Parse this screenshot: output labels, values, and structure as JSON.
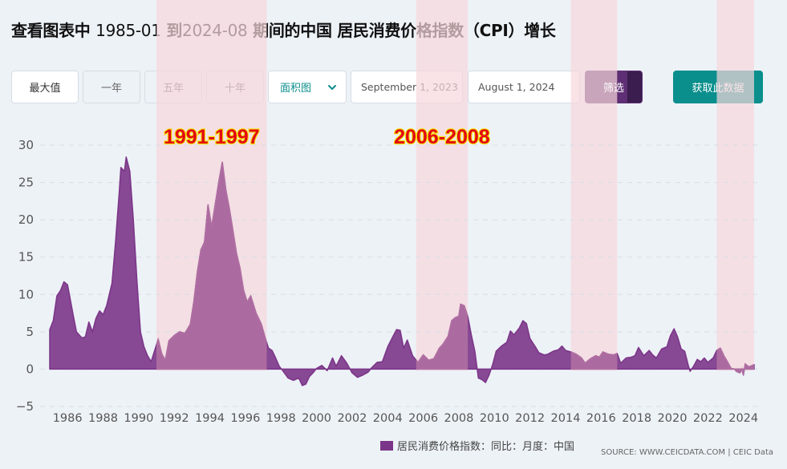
{
  "title": {
    "prefix": "查看图表中",
    "start": "1985-01",
    "to": "到",
    "end": "2024-08",
    "suffix": "期间的中国 居民消费价格指数（CPI）增长"
  },
  "toolbar": {
    "max_label": "最大值",
    "one_year_label": "一年",
    "five_year_label": "五年",
    "ten_year_label": "十年",
    "chart_type_value": "面积图",
    "start_date_value": "September 1, 2023",
    "end_date_value": "August 1, 2024",
    "filter_label": "筛选",
    "download_label": "获取此数据"
  },
  "colors": {
    "series": "#7b3588",
    "series_highlight": "#b06fa2",
    "band": "#f6d7dc",
    "accent": "#0a8f8c",
    "annotation_text": "#e30613",
    "annotation_outline": "#f4e200"
  },
  "legend_label": "居民消费价格指数：同比：月度：中国",
  "source": "SOURCE: WWW.CEICDATA.COM | CEIC Data",
  "chart_data": {
    "type": "area",
    "x_unit": "year (decimal)",
    "xlim": [
      1985.0,
      2024.6
    ],
    "ylim": [
      -5,
      30
    ],
    "yticks": [
      "−5",
      "0",
      "5",
      "10",
      "15",
      "20",
      "25",
      "30"
    ],
    "xticks": [
      "1986",
      "1988",
      "1990",
      "1992",
      "1994",
      "1996",
      "1998",
      "2000",
      "2002",
      "2004",
      "2006",
      "2008",
      "2010",
      "2012",
      "2014",
      "2016",
      "2018",
      "2020",
      "2022",
      "2024"
    ],
    "grid": true,
    "legend_position": "bottom",
    "highlight_periods": [
      {
        "label": "1991-1997",
        "from": 1991.0,
        "to": 1997.2
      },
      {
        "label": "2006-2008",
        "from": 2005.6,
        "to": 2008.5
      },
      {
        "label": "",
        "from": 2014.3,
        "to": 2016.9
      },
      {
        "label": "",
        "from": 2022.5,
        "to": 2024.6
      }
    ],
    "series": [
      {
        "name": "居民消费价格指数：同比：月度：中国",
        "points": [
          [
            1985.0,
            5.3
          ],
          [
            1985.2,
            6.5
          ],
          [
            1985.4,
            9.8
          ],
          [
            1985.6,
            10.5
          ],
          [
            1985.8,
            11.7
          ],
          [
            1986.0,
            11.3
          ],
          [
            1986.3,
            7.5
          ],
          [
            1986.5,
            5.0
          ],
          [
            1986.8,
            4.2
          ],
          [
            1987.0,
            4.3
          ],
          [
            1987.2,
            6.3
          ],
          [
            1987.4,
            5.0
          ],
          [
            1987.6,
            6.8
          ],
          [
            1987.8,
            7.8
          ],
          [
            1988.0,
            7.3
          ],
          [
            1988.2,
            8.5
          ],
          [
            1988.5,
            11.5
          ],
          [
            1988.7,
            17.0
          ],
          [
            1988.9,
            23.5
          ],
          [
            1989.0,
            27.0
          ],
          [
            1989.2,
            26.5
          ],
          [
            1989.3,
            28.4
          ],
          [
            1989.5,
            26.5
          ],
          [
            1989.7,
            20.0
          ],
          [
            1989.9,
            12.0
          ],
          [
            1990.1,
            5.0
          ],
          [
            1990.3,
            3.0
          ],
          [
            1990.5,
            1.8
          ],
          [
            1990.7,
            1.0
          ],
          [
            1990.9,
            2.5
          ],
          [
            1991.1,
            4.0
          ],
          [
            1991.3,
            2.0
          ],
          [
            1991.5,
            1.2
          ],
          [
            1991.7,
            3.8
          ],
          [
            1992.0,
            4.5
          ],
          [
            1992.3,
            5.0
          ],
          [
            1992.6,
            4.8
          ],
          [
            1992.9,
            6.0
          ],
          [
            1993.1,
            9.0
          ],
          [
            1993.3,
            13.0
          ],
          [
            1993.5,
            16.0
          ],
          [
            1993.7,
            17.0
          ],
          [
            1993.9,
            22.0
          ],
          [
            1994.1,
            19.0
          ],
          [
            1994.3,
            22.0
          ],
          [
            1994.5,
            25.0
          ],
          [
            1994.7,
            27.7
          ],
          [
            1994.9,
            24.0
          ],
          [
            1995.1,
            21.5
          ],
          [
            1995.3,
            18.5
          ],
          [
            1995.5,
            15.5
          ],
          [
            1995.7,
            13.5
          ],
          [
            1995.9,
            10.5
          ],
          [
            1996.1,
            9.0
          ],
          [
            1996.3,
            9.8
          ],
          [
            1996.6,
            7.5
          ],
          [
            1996.9,
            6.0
          ],
          [
            1997.1,
            4.3
          ],
          [
            1997.3,
            2.8
          ],
          [
            1997.5,
            2.5
          ],
          [
            1997.7,
            1.5
          ],
          [
            1997.9,
            0.4
          ],
          [
            1998.1,
            -0.2
          ],
          [
            1998.4,
            -1.2
          ],
          [
            1998.7,
            -1.5
          ],
          [
            1999.0,
            -1.2
          ],
          [
            1999.2,
            -2.2
          ],
          [
            1999.4,
            -2.0
          ],
          [
            1999.6,
            -1.0
          ],
          [
            1999.8,
            -0.5
          ],
          [
            2000.0,
            0.1
          ],
          [
            2000.3,
            0.5
          ],
          [
            2000.6,
            -0.2
          ],
          [
            2000.9,
            1.5
          ],
          [
            2001.1,
            0.4
          ],
          [
            2001.4,
            1.8
          ],
          [
            2001.7,
            0.8
          ],
          [
            2002.0,
            -0.5
          ],
          [
            2002.3,
            -1.1
          ],
          [
            2002.6,
            -0.8
          ],
          [
            2002.9,
            -0.4
          ],
          [
            2003.1,
            0.2
          ],
          [
            2003.4,
            0.9
          ],
          [
            2003.7,
            1.0
          ],
          [
            2004.0,
            3.0
          ],
          [
            2004.3,
            4.4
          ],
          [
            2004.5,
            5.3
          ],
          [
            2004.7,
            5.2
          ],
          [
            2004.9,
            2.8
          ],
          [
            2005.1,
            3.9
          ],
          [
            2005.4,
            1.8
          ],
          [
            2005.7,
            0.9
          ],
          [
            2006.0,
            1.9
          ],
          [
            2006.3,
            1.2
          ],
          [
            2006.6,
            1.4
          ],
          [
            2006.9,
            2.8
          ],
          [
            2007.1,
            3.3
          ],
          [
            2007.4,
            4.4
          ],
          [
            2007.6,
            6.5
          ],
          [
            2007.8,
            6.9
          ],
          [
            2008.0,
            7.1
          ],
          [
            2008.1,
            8.7
          ],
          [
            2008.3,
            8.5
          ],
          [
            2008.5,
            7.1
          ],
          [
            2008.7,
            4.6
          ],
          [
            2008.9,
            2.4
          ],
          [
            2009.1,
            -1.2
          ],
          [
            2009.3,
            -1.4
          ],
          [
            2009.5,
            -1.8
          ],
          [
            2009.7,
            -0.8
          ],
          [
            2009.9,
            0.6
          ],
          [
            2010.1,
            2.4
          ],
          [
            2010.4,
            3.1
          ],
          [
            2010.7,
            3.6
          ],
          [
            2010.9,
            5.1
          ],
          [
            2011.1,
            4.6
          ],
          [
            2011.4,
            5.5
          ],
          [
            2011.6,
            6.5
          ],
          [
            2011.8,
            6.1
          ],
          [
            2012.0,
            4.1
          ],
          [
            2012.3,
            3.0
          ],
          [
            2012.5,
            2.2
          ],
          [
            2012.8,
            1.9
          ],
          [
            2013.0,
            2.0
          ],
          [
            2013.3,
            2.4
          ],
          [
            2013.6,
            2.6
          ],
          [
            2013.8,
            3.1
          ],
          [
            2014.0,
            2.5
          ],
          [
            2014.3,
            2.3
          ],
          [
            2014.6,
            2.0
          ],
          [
            2014.9,
            1.5
          ],
          [
            2015.1,
            0.8
          ],
          [
            2015.4,
            1.4
          ],
          [
            2015.7,
            1.8
          ],
          [
            2015.9,
            1.6
          ],
          [
            2016.1,
            2.3
          ],
          [
            2016.4,
            2.0
          ],
          [
            2016.7,
            1.9
          ],
          [
            2016.9,
            2.1
          ],
          [
            2017.1,
            0.8
          ],
          [
            2017.4,
            1.5
          ],
          [
            2017.7,
            1.6
          ],
          [
            2017.9,
            1.8
          ],
          [
            2018.1,
            2.9
          ],
          [
            2018.4,
            1.8
          ],
          [
            2018.7,
            2.5
          ],
          [
            2018.9,
            1.9
          ],
          [
            2019.1,
            1.5
          ],
          [
            2019.4,
            2.7
          ],
          [
            2019.7,
            3.0
          ],
          [
            2019.8,
            3.8
          ],
          [
            2019.9,
            4.5
          ],
          [
            2020.1,
            5.4
          ],
          [
            2020.3,
            4.3
          ],
          [
            2020.5,
            2.7
          ],
          [
            2020.7,
            2.4
          ],
          [
            2020.9,
            0.5
          ],
          [
            2021.0,
            -0.3
          ],
          [
            2021.2,
            0.4
          ],
          [
            2021.4,
            1.3
          ],
          [
            2021.6,
            1.0
          ],
          [
            2021.8,
            1.5
          ],
          [
            2022.0,
            0.9
          ],
          [
            2022.3,
            1.5
          ],
          [
            2022.5,
            2.5
          ],
          [
            2022.7,
            2.8
          ],
          [
            2022.9,
            1.8
          ],
          [
            2023.1,
            1.0
          ],
          [
            2023.3,
            0.1
          ],
          [
            2023.5,
            0.0
          ],
          [
            2023.6,
            -0.3
          ],
          [
            2023.8,
            -0.5
          ],
          [
            2023.9,
            0.0
          ],
          [
            2024.0,
            -0.8
          ],
          [
            2024.1,
            0.7
          ],
          [
            2024.3,
            0.3
          ],
          [
            2024.5,
            0.5
          ],
          [
            2024.6,
            0.6
          ]
        ]
      }
    ]
  }
}
